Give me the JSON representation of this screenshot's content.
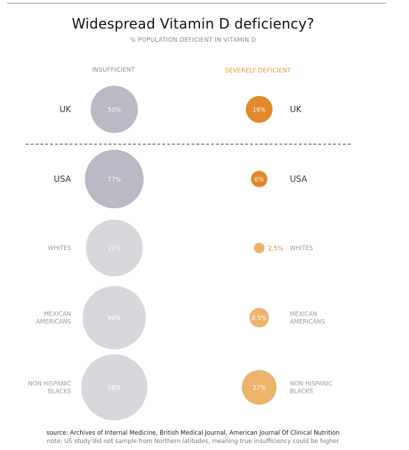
{
  "title": "Widespread Vitamin D deficiency?",
  "subtitle": "% POPULATION DEFICIENT IN VITAMIN D",
  "columns": {
    "insufficient": "INSUFFICIENT",
    "severe": "SEVERELY DEFICIENT"
  },
  "colors": {
    "insufficient_dark": "#b8b9c4",
    "insufficient_light": "#d8d8dc",
    "severe_dark": "#e0892a",
    "severe_light": "#ecb36a"
  },
  "chart_data": {
    "type": "bubble",
    "title": "Widespread Vitamin D deficiency?",
    "subtitle": "% POPULATION DEFICIENT IN VITAMIN D",
    "unit": "%",
    "series": [
      {
        "name": "INSUFFICIENT",
        "values": [
          50,
          77,
          72,
          90,
          98
        ]
      },
      {
        "name": "SEVERELY DEFICIENT",
        "values": [
          16,
          6,
          2.5,
          8.5,
          27
        ]
      }
    ],
    "categories": [
      {
        "label_left": "UK",
        "label_right": "UK",
        "group": "main",
        "insufficient_label": "50%",
        "severe_label": "16%",
        "severe_label_outside": false
      },
      {
        "label_left": "USA",
        "label_right": "USA",
        "group": "main",
        "insufficient_label": "77%",
        "severe_label": "6%",
        "severe_label_outside": false
      },
      {
        "label_left": "WHITES",
        "label_right": "WHITES",
        "group": "sub",
        "insufficient_label": "72%",
        "severe_label": "2.5%",
        "severe_label_outside": true
      },
      {
        "label_left": "MEXICAN\nAMERICANS",
        "label_right": "MEXICAN\nAMERICANS",
        "group": "sub",
        "insufficient_label": "90%",
        "severe_label": "8.5%",
        "severe_label_outside": false
      },
      {
        "label_left": "NON HISPANIC\nBLACKS",
        "label_right": "NON HISPANIC\nBLACKS",
        "group": "sub",
        "insufficient_label": "98%",
        "severe_label": "27%",
        "severe_label_outside": false
      }
    ]
  },
  "footer": {
    "source": "source: Archives of Internal Medicine, British Medical Journal, American Journal Of Clinical Nutrition",
    "note": "note: US study did not sample from Northern latitudes, meaning true insufficiency could be higher"
  }
}
